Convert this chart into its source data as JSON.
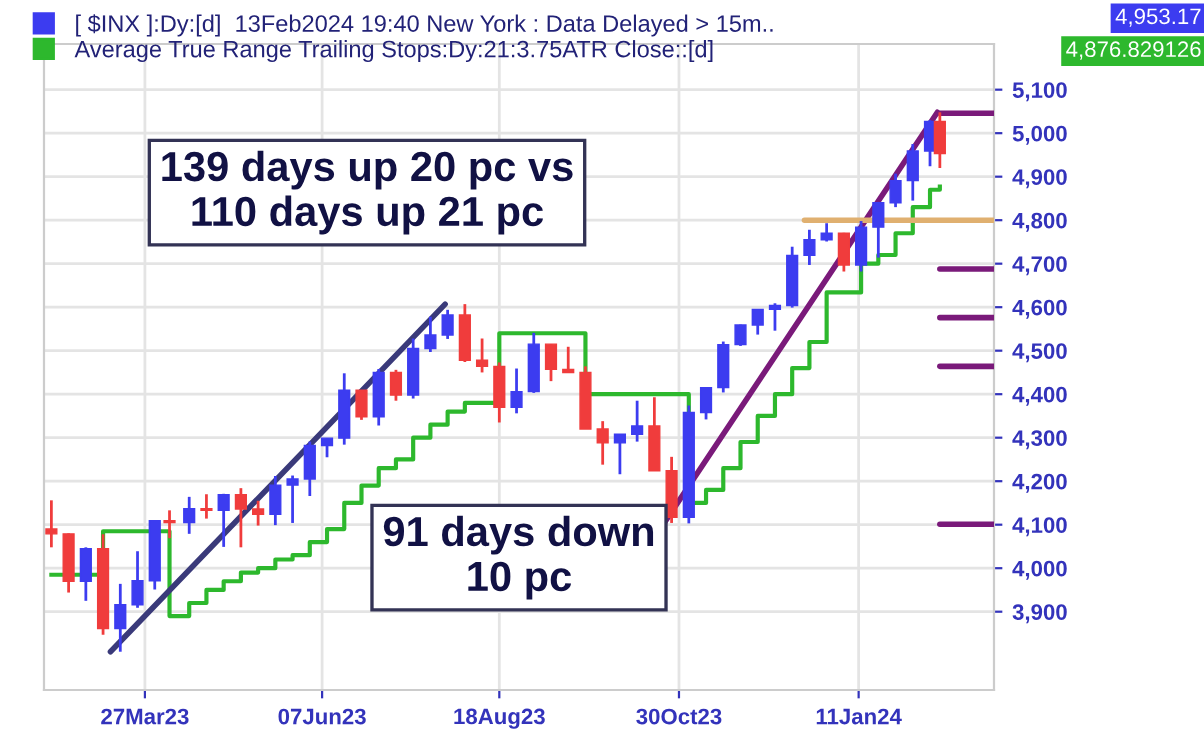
{
  "chart_data": {
    "type": "candlestick",
    "legend": "top left",
    "grid": true,
    "xlim": [
      "2023-02-14",
      "2024-03-06"
    ],
    "xticks": [
      {
        "value": "2023-03-27",
        "label": "27Mar23"
      },
      {
        "value": "2023-06-07",
        "label": "07Jun23"
      },
      {
        "value": "2023-08-18",
        "label": "18Aug23"
      },
      {
        "value": "2023-10-30",
        "label": "30Oct23"
      },
      {
        "value": "2024-01-11",
        "label": "11Jan24"
      }
    ],
    "ylim": [
      3720,
      5205
    ],
    "yticks": [
      {
        "value": 3900,
        "label": "3,900"
      },
      {
        "value": 4000,
        "label": "4,000"
      },
      {
        "value": 4100,
        "label": "4,100"
      },
      {
        "value": 4200,
        "label": "4,200"
      },
      {
        "value": 4300,
        "label": "4,300"
      },
      {
        "value": 4400,
        "label": "4,400"
      },
      {
        "value": 4500,
        "label": "4,500"
      },
      {
        "value": 4600,
        "label": "4,600"
      },
      {
        "value": 4700,
        "label": "4,700"
      },
      {
        "value": 4800,
        "label": "4,800"
      },
      {
        "value": 4900,
        "label": "4,900"
      },
      {
        "value": 5000,
        "label": "5,000"
      },
      {
        "value": 5100,
        "label": "5,100"
      }
    ],
    "x": [
      "2023-02-17",
      "2023-02-24",
      "2023-03-03",
      "2023-03-10",
      "2023-03-17",
      "2023-03-24",
      "2023-03-31",
      "2023-04-06",
      "2023-04-14",
      "2023-04-21",
      "2023-04-28",
      "2023-05-05",
      "2023-05-12",
      "2023-05-19",
      "2023-05-26",
      "2023-06-02",
      "2023-06-09",
      "2023-06-16",
      "2023-06-23",
      "2023-06-30",
      "2023-07-07",
      "2023-07-14",
      "2023-07-21",
      "2023-07-28",
      "2023-08-04",
      "2023-08-11",
      "2023-08-18",
      "2023-08-25",
      "2023-09-01",
      "2023-09-08",
      "2023-09-15",
      "2023-09-22",
      "2023-09-29",
      "2023-10-06",
      "2023-10-13",
      "2023-10-20",
      "2023-10-27",
      "2023-11-03",
      "2023-11-10",
      "2023-11-17",
      "2023-11-24",
      "2023-12-01",
      "2023-12-08",
      "2023-12-15",
      "2023-12-22",
      "2023-12-29",
      "2024-01-05",
      "2024-01-12",
      "2024-01-19",
      "2024-01-26",
      "2024-02-02",
      "2024-02-09",
      "2024-02-13"
    ],
    "series": [
      {
        "name": "[ $INX ]:Dy:[d]  13Feb2024 19:40 New York : Data Delayed > 15m..",
        "color": "#3c3cf0",
        "ohlc": [
          [
            4090,
            4156,
            4048,
            4079
          ],
          [
            4079,
            4080,
            3944,
            3970
          ],
          [
            3970,
            4048,
            3925,
            4045
          ],
          [
            4045,
            4078,
            3847,
            3861
          ],
          [
            3861,
            3964,
            3808,
            3916
          ],
          [
            3916,
            4039,
            3909,
            3971
          ],
          [
            3971,
            4110,
            3951,
            4109
          ],
          [
            4109,
            4133,
            4069,
            4105
          ],
          [
            4105,
            4164,
            4079,
            4137
          ],
          [
            4137,
            4170,
            4114,
            4133
          ],
          [
            4133,
            4171,
            4049,
            4169
          ],
          [
            4169,
            4184,
            4048,
            4136
          ],
          [
            4136,
            4155,
            4098,
            4124
          ],
          [
            4124,
            4212,
            4099,
            4191
          ],
          [
            4191,
            4213,
            4104,
            4205
          ],
          [
            4205,
            4291,
            4166,
            4282
          ],
          [
            4282,
            4299,
            4255,
            4299
          ],
          [
            4299,
            4448,
            4284,
            4409
          ],
          [
            4409,
            4409,
            4341,
            4348
          ],
          [
            4348,
            4458,
            4328,
            4450
          ],
          [
            4450,
            4456,
            4385,
            4398
          ],
          [
            4398,
            4528,
            4390,
            4505
          ],
          [
            4505,
            4578,
            4497,
            4536
          ],
          [
            4536,
            4594,
            4527,
            4582
          ],
          [
            4582,
            4607,
            4474,
            4478
          ],
          [
            4478,
            4528,
            4450,
            4464
          ],
          [
            4464,
            4473,
            4335,
            4370
          ],
          [
            4370,
            4459,
            4356,
            4406
          ],
          [
            4406,
            4541,
            4403,
            4515
          ],
          [
            4515,
            4515,
            4430,
            4457
          ],
          [
            4457,
            4509,
            4450,
            4450
          ],
          [
            4450,
            4464,
            4320,
            4320
          ],
          [
            4320,
            4338,
            4238,
            4288
          ],
          [
            4288,
            4308,
            4216,
            4308
          ],
          [
            4308,
            4385,
            4291,
            4327
          ],
          [
            4327,
            4393,
            4224,
            4224
          ],
          [
            4224,
            4256,
            4104,
            4117
          ],
          [
            4117,
            4374,
            4103,
            4358
          ],
          [
            4358,
            4415,
            4342,
            4415
          ],
          [
            4415,
            4521,
            4404,
            4514
          ],
          [
            4514,
            4560,
            4511,
            4559
          ],
          [
            4559,
            4595,
            4537,
            4595
          ],
          [
            4595,
            4609,
            4546,
            4604
          ],
          [
            4604,
            4739,
            4599,
            4719
          ],
          [
            4719,
            4778,
            4697,
            4755
          ],
          [
            4755,
            4793,
            4751,
            4770
          ],
          [
            4770,
            4771,
            4682,
            4697
          ],
          [
            4697,
            4798,
            4682,
            4784
          ],
          [
            4784,
            4842,
            4714,
            4840
          ],
          [
            4840,
            4907,
            4830,
            4891
          ],
          [
            4891,
            4975,
            4845,
            4959
          ],
          [
            4959,
            5030,
            4924,
            5027
          ],
          [
            5027,
            5048,
            4920,
            4953
          ]
        ],
        "colors": [
          "#f03c3c",
          "#f03c3c",
          "#3c3cf0",
          "#f03c3c",
          "#3c3cf0",
          "#3c3cf0",
          "#3c3cf0",
          "#f03c3c",
          "#3c3cf0",
          "#f03c3c",
          "#3c3cf0",
          "#f03c3c",
          "#f03c3c",
          "#3c3cf0",
          "#3c3cf0",
          "#3c3cf0",
          "#3c3cf0",
          "#3c3cf0",
          "#f03c3c",
          "#3c3cf0",
          "#f03c3c",
          "#3c3cf0",
          "#3c3cf0",
          "#3c3cf0",
          "#f03c3c",
          "#f03c3c",
          "#f03c3c",
          "#3c3cf0",
          "#3c3cf0",
          "#f03c3c",
          "#f03c3c",
          "#f03c3c",
          "#f03c3c",
          "#3c3cf0",
          "#3c3cf0",
          "#f03c3c",
          "#f03c3c",
          "#3c3cf0",
          "#3c3cf0",
          "#3c3cf0",
          "#3c3cf0",
          "#3c3cf0",
          "#3c3cf0",
          "#3c3cf0",
          "#3c3cf0",
          "#3c3cf0",
          "#f03c3c",
          "#3c3cf0",
          "#3c3cf0",
          "#3c3cf0",
          "#3c3cf0",
          "#3c3cf0",
          "#f03c3c"
        ]
      },
      {
        "type": "step",
        "name": "Average True Range Trailing Stops:Dy:21:3.75ATR Close::[d]",
        "color": "#2db82d",
        "values": [
          3985,
          3985,
          3985,
          4085,
          4085,
          4085,
          4085,
          3890,
          3920,
          3950,
          3970,
          3990,
          4000,
          4020,
          4030,
          4060,
          4090,
          4150,
          4190,
          4230,
          4250,
          4300,
          4330,
          4360,
          4380,
          4380,
          4540,
          4540,
          4540,
          4540,
          4540,
          4400,
          4400,
          4400,
          4400,
          4400,
          4400,
          4150,
          4180,
          4230,
          4290,
          4350,
          4400,
          4460,
          4520,
          4634,
          4634,
          4700,
          4720,
          4770,
          4830,
          4870,
          4877
        ]
      },
      {
        "type": "line",
        "color": "#3a3a7a",
        "x": [
          "2023-03-13",
          "2023-07-27"
        ],
        "values": [
          3808,
          4607
        ]
      },
      {
        "type": "line",
        "color": "#7a1a7a",
        "x": [
          "2023-10-24",
          "2024-02-12"
        ],
        "values": [
          4104,
          5048
        ]
      },
      {
        "type": "line",
        "color": "#7a1a7a",
        "x": [
          "2024-02-13",
          "2024-03-06"
        ],
        "values": [
          5046,
          5046
        ]
      },
      {
        "type": "line",
        "color": "#7a1a7a",
        "x": [
          "2024-02-13",
          "2024-03-06"
        ],
        "values": [
          4688,
          4688
        ]
      },
      {
        "type": "line",
        "color": "#7a1a7a",
        "x": [
          "2024-02-13",
          "2024-03-06"
        ],
        "values": [
          4576,
          4576
        ]
      },
      {
        "type": "line",
        "color": "#7a1a7a",
        "x": [
          "2024-02-13",
          "2024-03-06"
        ],
        "values": [
          4464,
          4464
        ]
      },
      {
        "type": "line",
        "color": "#7a1a7a",
        "x": [
          "2024-02-13",
          "2024-03-06"
        ],
        "values": [
          4101,
          4101
        ]
      },
      {
        "type": "line",
        "color": "#e0b070",
        "x": [
          "2023-12-20",
          "2024-03-06"
        ],
        "values": [
          4800,
          4800
        ]
      }
    ],
    "annotations": [
      "139 days up 20 pc vs\n110 days up 21 pc",
      "91 days down\n10 pc",
      "4,953.17",
      "4,876.829126"
    ]
  }
}
